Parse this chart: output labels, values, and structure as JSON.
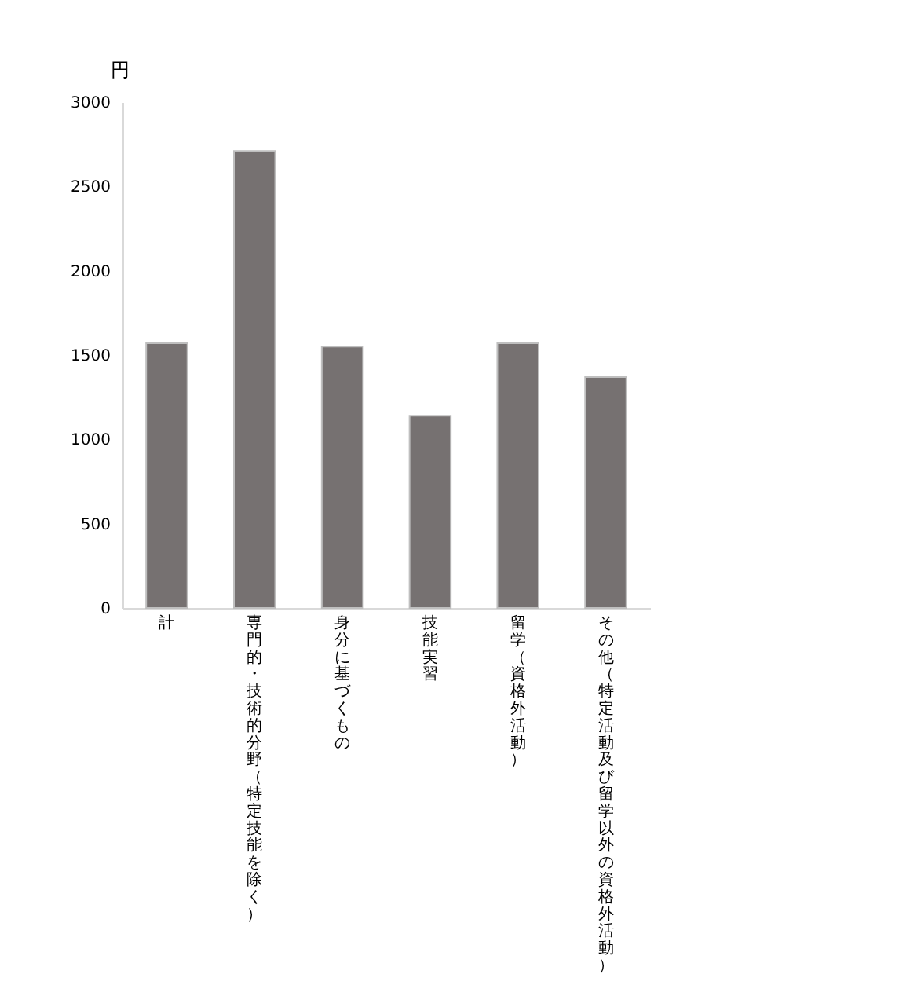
{
  "chart_data": {
    "type": "bar",
    "ylabel": "円",
    "categories": [
      "計",
      "専門的・技術的分野（特定技能を除く）",
      "身分に基づくもの",
      "技能実習",
      "留学（資格外活動）",
      "その他（特定活動及び留学以外の資格外活動）"
    ],
    "values": [
      1570,
      2710,
      1550,
      1140,
      1570,
      1370
    ],
    "color": "#767171",
    "ylim": [
      0,
      3000
    ],
    "yticks": [
      0,
      500,
      1000,
      1500,
      2000,
      2500,
      3000
    ],
    "grid": false
  }
}
